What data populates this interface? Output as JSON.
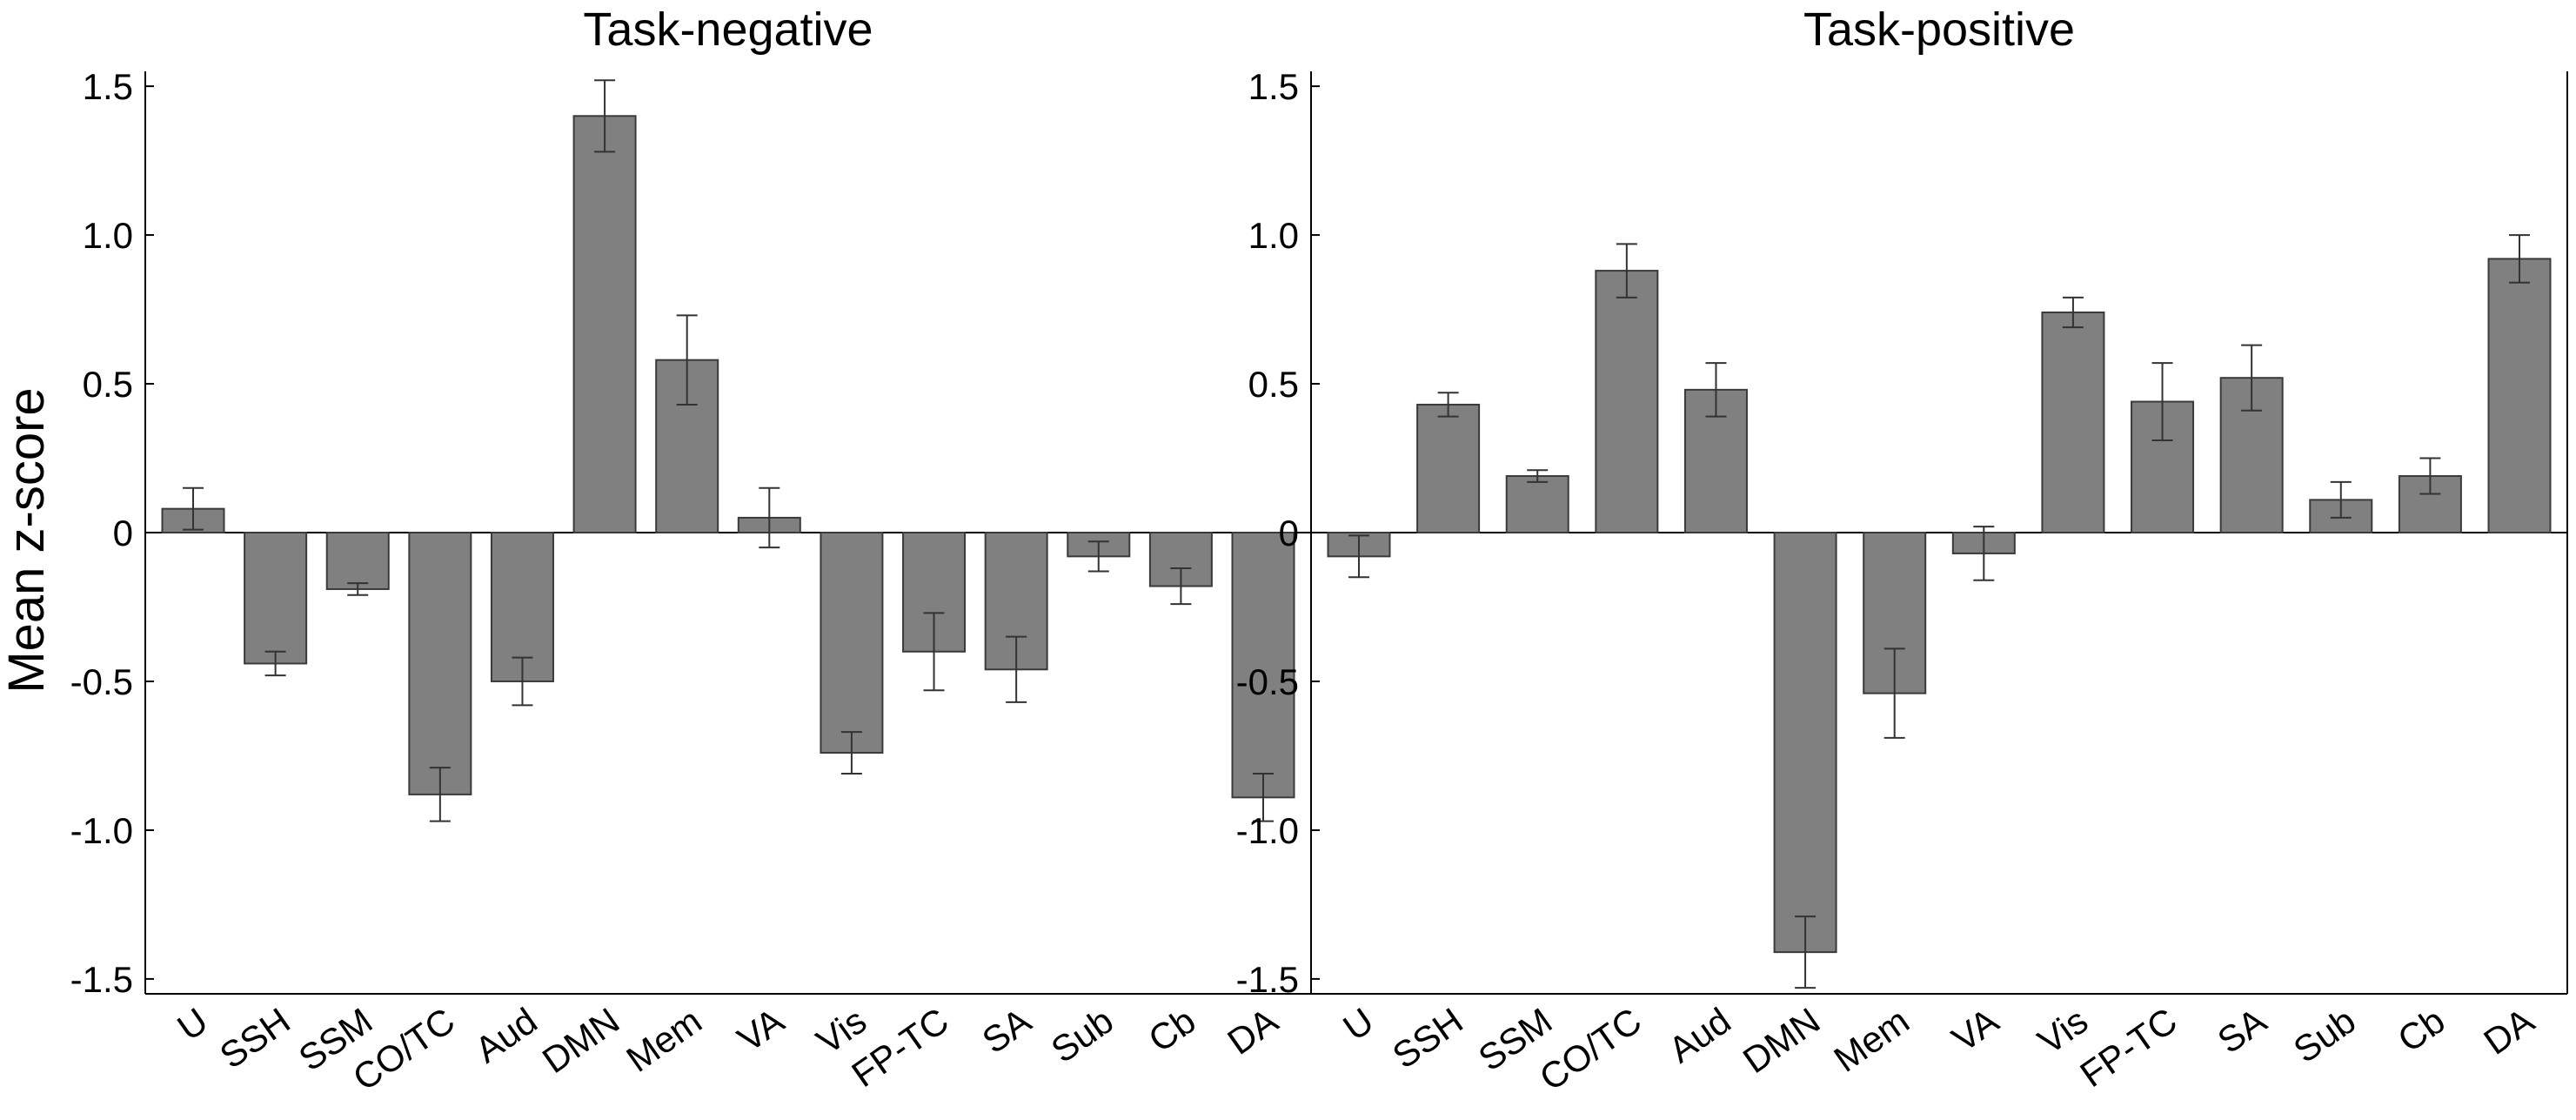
{
  "ylabel": "Mean z-score",
  "colors": {
    "bar_fill": "#808080",
    "bar_stroke": "#3a3a3a",
    "axis": "#000000",
    "error": "#333333"
  },
  "chart_data": [
    {
      "type": "bar",
      "title": "Task-negative",
      "xlabel": "",
      "ylabel": "Mean z-score",
      "ylim": [
        -1.55,
        1.55
      ],
      "yticks": [
        1.5,
        1.0,
        0.5,
        0,
        -0.5,
        -1.0,
        -1.5
      ],
      "ytick_labels": [
        "1.5",
        "1.0",
        "0.5",
        "0",
        "-0.5",
        "-1.0",
        "-1.5"
      ],
      "grid": false,
      "categories": [
        "U",
        "SSH",
        "SSM",
        "CO/TC",
        "Aud",
        "DMN",
        "Mem",
        "VA",
        "Vis",
        "FP-TC",
        "SA",
        "Sub",
        "Cb",
        "DA"
      ],
      "values": [
        0.08,
        -0.44,
        -0.19,
        -0.88,
        -0.5,
        1.4,
        0.58,
        0.05,
        -0.74,
        -0.4,
        -0.46,
        -0.08,
        -0.18,
        -0.89
      ],
      "errors": [
        0.07,
        0.04,
        0.02,
        0.09,
        0.08,
        0.12,
        0.15,
        0.1,
        0.07,
        0.13,
        0.11,
        0.05,
        0.06,
        0.08
      ]
    },
    {
      "type": "bar",
      "title": "Task-positive",
      "xlabel": "",
      "ylabel": "",
      "ylim": [
        -1.55,
        1.55
      ],
      "yticks": [
        1.5,
        1.0,
        0.5,
        0,
        -0.5,
        -1.0,
        -1.5
      ],
      "ytick_labels": [
        "1.5",
        "1.0",
        "0.5",
        "0",
        "-0.5",
        "-1.0",
        "-1.5"
      ],
      "grid": false,
      "categories": [
        "U",
        "SSH",
        "SSM",
        "CO/TC",
        "Aud",
        "DMN",
        "Mem",
        "VA",
        "Vis",
        "FP-TC",
        "SA",
        "Sub",
        "Cb",
        "DA"
      ],
      "values": [
        -0.08,
        0.43,
        0.19,
        0.88,
        0.48,
        -1.41,
        -0.54,
        -0.07,
        0.74,
        0.44,
        0.52,
        0.11,
        0.19,
        0.92
      ],
      "errors": [
        0.07,
        0.04,
        0.02,
        0.09,
        0.09,
        0.12,
        0.15,
        0.09,
        0.05,
        0.13,
        0.11,
        0.06,
        0.06,
        0.08
      ]
    }
  ]
}
